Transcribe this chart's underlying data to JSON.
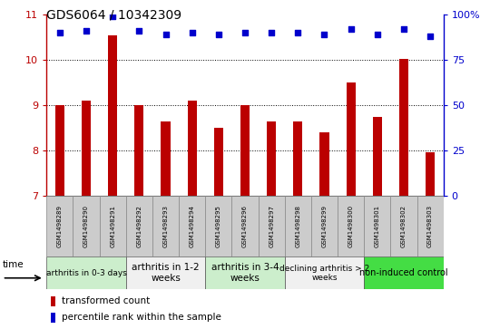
{
  "title": "GDS6064 / 10342309",
  "samples": [
    "GSM1498289",
    "GSM1498290",
    "GSM1498291",
    "GSM1498292",
    "GSM1498293",
    "GSM1498294",
    "GSM1498295",
    "GSM1498296",
    "GSM1498297",
    "GSM1498298",
    "GSM1498299",
    "GSM1498300",
    "GSM1498301",
    "GSM1498302",
    "GSM1498303"
  ],
  "transformed_count": [
    9.0,
    9.1,
    10.55,
    9.0,
    8.65,
    9.1,
    8.5,
    9.0,
    8.65,
    8.65,
    8.4,
    9.5,
    8.75,
    10.02,
    7.97
  ],
  "percentile_rank": [
    90,
    91,
    99,
    91,
    89,
    90,
    89,
    90,
    90,
    90,
    89,
    92,
    89,
    92,
    88
  ],
  "ylim_left": [
    7,
    11
  ],
  "ylim_right": [
    0,
    100
  ],
  "yticks_left": [
    7,
    8,
    9,
    10,
    11
  ],
  "yticks_right": [
    0,
    25,
    50,
    75,
    100
  ],
  "bar_color": "#bb0000",
  "dot_color": "#0000cc",
  "groups": [
    {
      "label": "arthritis in 0-3 days",
      "start": 0,
      "end": 3,
      "color": "#cceecc",
      "fontsize": 6.5
    },
    {
      "label": "arthritis in 1-2\nweeks",
      "start": 3,
      "end": 6,
      "color": "#f0f0f0",
      "fontsize": 7.5
    },
    {
      "label": "arthritis in 3-4\nweeks",
      "start": 6,
      "end": 9,
      "color": "#cceecc",
      "fontsize": 7.5
    },
    {
      "label": "declining arthritis > 2\nweeks",
      "start": 9,
      "end": 12,
      "color": "#f0f0f0",
      "fontsize": 6.5
    },
    {
      "label": "non-induced control",
      "start": 12,
      "end": 15,
      "color": "#44dd44",
      "fontsize": 7.0
    }
  ],
  "legend_bar_label": "transformed count",
  "legend_dot_label": "percentile rank within the sample",
  "time_label": "time",
  "sample_box_color": "#cccccc",
  "grid_yticks": [
    8,
    9,
    10
  ]
}
